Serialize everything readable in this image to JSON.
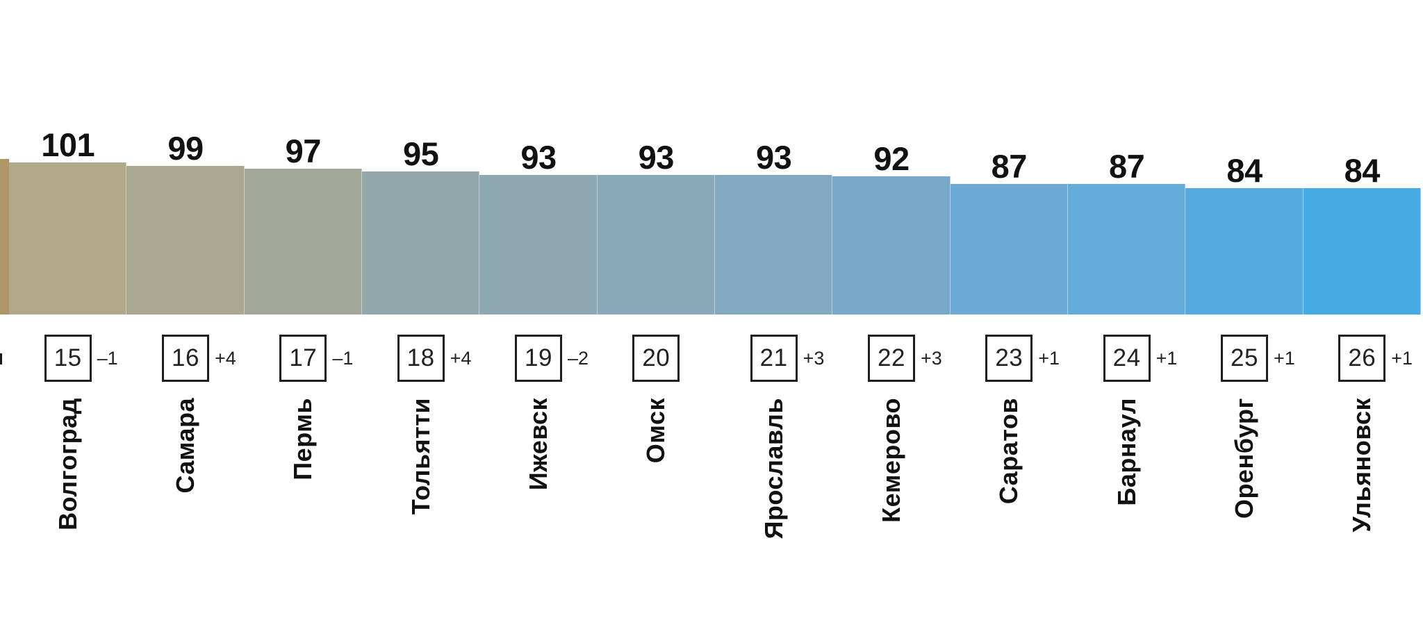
{
  "chart_data": {
    "type": "bar",
    "title": "",
    "xlabel": "",
    "ylabel": "",
    "legend": "none",
    "grid": false,
    "axes_shown": false,
    "description": "Ranking bar chart of Russian cities; bars share a common bottom baseline, height proportional to score; rank number in a box below each bar with rank change; city name rotated vertically",
    "categories": [
      "Волгоград",
      "Самара",
      "Пермь",
      "Тольятти",
      "Ижевск",
      "Омск",
      "Ярославль",
      "Кемерово",
      "Саратов",
      "Барнаул",
      "Оренбург",
      "Ульяновск"
    ],
    "values": [
      101,
      99,
      97,
      95,
      93,
      93,
      93,
      92,
      87,
      87,
      84,
      84
    ],
    "bars": [
      {
        "city": "Волгоград",
        "value": "101",
        "rank": "15",
        "change": "–1",
        "color": "#b2a88b"
      },
      {
        "city": "Самара",
        "value": "99",
        "rank": "16",
        "change": "+4",
        "color": "#aaa791"
      },
      {
        "city": "Пермь",
        "value": "97",
        "rank": "17",
        "change": "–1",
        "color": "#a2a899"
      },
      {
        "city": "Тольятти",
        "value": "95",
        "rank": "18",
        "change": "+4",
        "color": "#93a8ab"
      },
      {
        "city": "Ижевск",
        "value": "93",
        "rank": "19",
        "change": "–2",
        "color": "#8ea9b3"
      },
      {
        "city": "Омск",
        "value": "93",
        "rank": "20",
        "change": "",
        "color": "#8aa9ba"
      },
      {
        "city": "Ярославль",
        "value": "93",
        "rank": "21",
        "change": "+3",
        "color": "#83a9c1"
      },
      {
        "city": "Кемерово",
        "value": "92",
        "rank": "22",
        "change": "+3",
        "color": "#79a9ca"
      },
      {
        "city": "Саратов",
        "value": "87",
        "rank": "23",
        "change": "+1",
        "color": "#6daad3"
      },
      {
        "city": "Барнаул",
        "value": "87",
        "rank": "24",
        "change": "+1",
        "color": "#63acd9"
      },
      {
        "city": "Оренбург",
        "value": "84",
        "rank": "25",
        "change": "+1",
        "color": "#55abdf"
      },
      {
        "city": "Ульяновск",
        "value": "84",
        "rank": "26",
        "change": "+1",
        "color": "#46abe3"
      }
    ],
    "clipped_left_bar": {
      "color": "#ae9669"
    }
  }
}
